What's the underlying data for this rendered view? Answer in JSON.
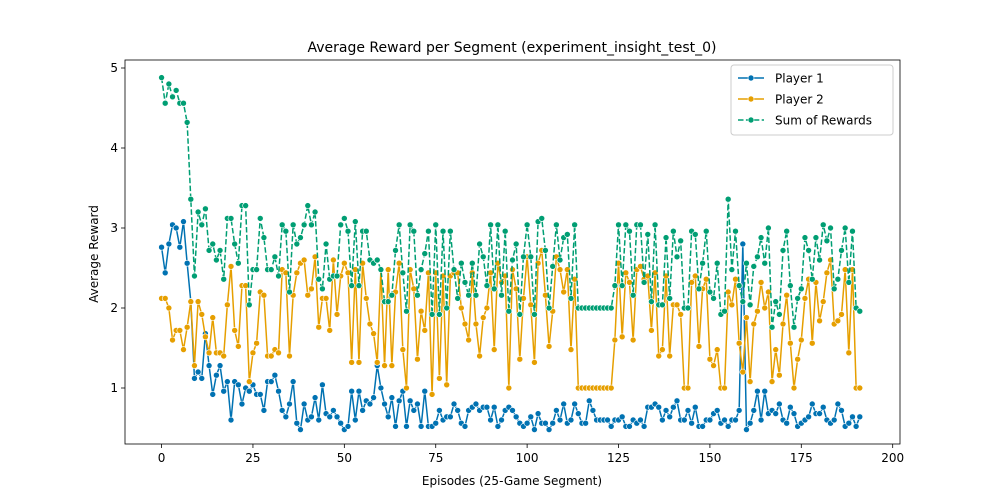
{
  "chart_data": {
    "type": "line",
    "title": "Average Reward per Segment (experiment_insight_test_0)",
    "xlabel": "Episodes (25-Game Segment)",
    "ylabel": "Average Reward",
    "xlim": [
      -10,
      202
    ],
    "ylim": [
      0.3,
      5.1
    ],
    "xticks": [
      0,
      25,
      50,
      75,
      100,
      125,
      150,
      175,
      200
    ],
    "yticks": [
      1,
      2,
      3,
      4,
      5
    ],
    "grid": false,
    "legend_position": "top-right",
    "series": [
      {
        "name": "Player 1",
        "color": "#0072b2",
        "line_style": "solid",
        "values": [
          2.76,
          2.44,
          2.8,
          3.04,
          3.0,
          2.76,
          3.08,
          2.56,
          2.08,
          1.12,
          1.2,
          1.12,
          1.68,
          1.28,
          0.92,
          1.16,
          1.28,
          0.96,
          1.08,
          0.6,
          1.08,
          1.04,
          0.8,
          1.0,
          0.96,
          1.04,
          0.92,
          0.92,
          0.72,
          1.08,
          1.08,
          1.16,
          0.96,
          0.72,
          0.64,
          0.8,
          1.08,
          0.56,
          0.48,
          0.8,
          0.6,
          0.64,
          0.88,
          0.6,
          1.04,
          0.68,
          0.64,
          0.72,
          0.64,
          0.56,
          0.48,
          0.52,
          0.96,
          0.6,
          0.96,
          0.72,
          0.84,
          0.8,
          0.88,
          1.28,
          1.0,
          0.8,
          0.64,
          0.88,
          0.52,
          0.84,
          0.96,
          0.52,
          0.84,
          0.72,
          0.8,
          0.52,
          0.96,
          0.52,
          0.52,
          0.56,
          0.72,
          0.6,
          0.64,
          0.64,
          0.8,
          0.72,
          0.56,
          0.52,
          0.72,
          0.76,
          0.8,
          0.72,
          0.76,
          0.76,
          0.6,
          0.76,
          0.52,
          0.6,
          0.72,
          0.76,
          0.72,
          0.64,
          0.56,
          0.52,
          0.56,
          0.64,
          0.48,
          0.68,
          0.56,
          0.56,
          0.48,
          0.56,
          0.72,
          0.6,
          0.8,
          0.56,
          0.6,
          0.8,
          0.68,
          0.56,
          0.56,
          0.84,
          0.72,
          0.6,
          0.6,
          0.6,
          0.6,
          0.52,
          0.6,
          0.6,
          0.64,
          0.52,
          0.52,
          0.6,
          0.56,
          0.6,
          0.52,
          0.76,
          0.76,
          0.8,
          0.76,
          0.6,
          0.72,
          0.64,
          0.76,
          0.84,
          0.6,
          0.6,
          0.72,
          0.56,
          0.76,
          0.52,
          0.52,
          0.6,
          0.6,
          0.68,
          0.72,
          0.56,
          0.6,
          0.52,
          0.6,
          0.6,
          0.72,
          2.8,
          0.48,
          0.56,
          0.72,
          0.96,
          0.6,
          0.96,
          0.68,
          0.72,
          0.68,
          0.8,
          0.6,
          0.56,
          0.76,
          0.68,
          0.52,
          0.56,
          0.6,
          0.64,
          0.8,
          0.68,
          0.68,
          0.76,
          0.6,
          0.56,
          0.6,
          0.8,
          0.72,
          0.52,
          0.56,
          0.64,
          0.52,
          0.64
        ]
      },
      {
        "name": "Player 2",
        "color": "#e69f00",
        "line_style": "solid",
        "values": [
          2.12,
          2.12,
          2.0,
          1.6,
          1.72,
          1.72,
          1.48,
          1.76,
          2.08,
          1.28,
          2.08,
          1.92,
          1.64,
          1.44,
          1.88,
          1.44,
          1.44,
          1.4,
          2.04,
          2.52,
          1.72,
          1.52,
          2.28,
          2.28,
          1.08,
          1.44,
          1.56,
          2.2,
          2.16,
          1.4,
          1.4,
          1.48,
          1.44,
          2.48,
          2.44,
          1.4,
          2.16,
          2.44,
          2.56,
          2.6,
          2.16,
          2.24,
          2.64,
          1.76,
          2.12,
          2.12,
          1.72,
          2.6,
          1.92,
          2.4,
          2.56,
          2.44,
          1.32,
          2.48,
          1.32,
          2.56,
          2.12,
          1.8,
          1.68,
          1.32,
          2.48,
          1.28,
          2.48,
          1.28,
          2.2,
          2.56,
          1.48,
          1.0,
          2.48,
          2.24,
          1.36,
          1.96,
          1.72,
          2.44,
          0.92,
          2.44,
          1.12,
          2.4,
          1.04,
          2.4,
          2.44,
          2.44,
          2.0,
          1.8,
          1.6,
          2.44,
          1.8,
          1.4,
          1.88,
          2.0,
          2.44,
          1.48,
          2.56,
          2.32,
          2.4,
          1.0,
          2.48,
          2.24,
          1.36,
          2.12,
          2.64,
          2.04,
          1.32,
          2.56,
          2.72,
          2.16,
          1.52,
          1.96,
          2.64,
          2.48,
          2.2,
          2.48,
          1.48,
          2.36,
          1.0,
          1.0,
          1.0,
          1.0,
          1.0,
          1.0,
          1.0,
          1.0,
          1.0,
          1.0,
          1.6,
          2.56,
          1.64,
          2.44,
          2.32,
          1.6,
          2.48,
          2.52,
          2.36,
          2.4,
          1.72,
          2.44,
          1.4,
          1.48,
          2.4,
          1.4,
          2.04,
          2.04,
          1.92,
          1.0,
          1.0,
          2.32,
          2.4,
          1.52,
          2.24,
          2.36,
          1.36,
          1.28,
          1.48,
          1.0,
          1.0,
          2.2,
          2.04,
          2.36,
          1.56,
          1.2,
          1.88,
          1.08,
          1.8,
          1.96,
          2.32,
          2.0,
          2.2,
          1.08,
          1.48,
          1.16,
          1.8,
          2.16,
          1.56,
          1.0,
          1.36,
          1.6,
          2.12,
          2.36,
          1.56,
          2.32,
          1.84,
          2.08,
          2.44,
          2.6,
          1.8,
          1.84,
          1.92,
          2.48,
          1.44,
          2.48,
          1.0,
          1.0
        ]
      },
      {
        "name": "Sum of Rewards",
        "color": "#009e73",
        "line_style": "dashed",
        "values": [
          4.88,
          4.56,
          4.8,
          4.64,
          4.72,
          4.56,
          4.56,
          4.32,
          3.36,
          2.4,
          3.2,
          3.04,
          3.24,
          2.72,
          2.8,
          2.6,
          2.72,
          2.36,
          3.12,
          3.12,
          2.8,
          2.56,
          3.28,
          3.28,
          2.04,
          2.48,
          2.48,
          3.12,
          2.88,
          2.48,
          2.48,
          2.64,
          2.4,
          3.04,
          2.96,
          2.2,
          3.04,
          2.8,
          2.88,
          3.04,
          3.28,
          3.04,
          3.2,
          2.36,
          2.24,
          2.8,
          2.36,
          2.4,
          2.4,
          3.04,
          3.12,
          2.96,
          2.28,
          3.08,
          2.28,
          2.96,
          2.96,
          2.6,
          2.56,
          2.6,
          2.48,
          2.08,
          2.08,
          2.16,
          2.72,
          3.04,
          2.44,
          1.96,
          3.04,
          2.96,
          2.16,
          2.48,
          2.68,
          2.96,
          1.92,
          3.04,
          1.92,
          2.96,
          2.0,
          2.96,
          2.48,
          2.12,
          2.56,
          2.32,
          2.16,
          2.56,
          2.16,
          2.8,
          2.64,
          2.28,
          3.04,
          2.24,
          3.04,
          2.16,
          2.96,
          1.96,
          2.6,
          2.8,
          1.92,
          2.64,
          3.04,
          2.64,
          1.92,
          3.08,
          3.12,
          2.72,
          2.0,
          2.52,
          3.04,
          2.6,
          2.88,
          2.92,
          2.12,
          3.04,
          2.0,
          2.0,
          2.0,
          2.0,
          2.0,
          2.0,
          2.0,
          2.0,
          2.0,
          2.0,
          2.28,
          3.04,
          2.28,
          3.04,
          2.96,
          2.16,
          3.04,
          3.04,
          2.32,
          2.92,
          2.08,
          3.04,
          2.04,
          2.04,
          2.88,
          2.12,
          2.96,
          2.64,
          2.84,
          2.0,
          2.0,
          2.96,
          2.92,
          2.24,
          2.56,
          2.96,
          2.2,
          2.12,
          2.56,
          1.92,
          1.96,
          3.36,
          2.48,
          2.96,
          2.28,
          2.08,
          2.56,
          2.04,
          2.52,
          2.64,
          2.88,
          2.56,
          3.0,
          1.76,
          2.08,
          1.92,
          2.72,
          2.96,
          2.28,
          1.76,
          2.12,
          2.24,
          2.88,
          2.72,
          2.36,
          2.88,
          2.6,
          3.04,
          2.84,
          3.0,
          2.24,
          2.36,
          2.72,
          3.0,
          2.32,
          2.96,
          2.0,
          1.96
        ]
      }
    ]
  }
}
